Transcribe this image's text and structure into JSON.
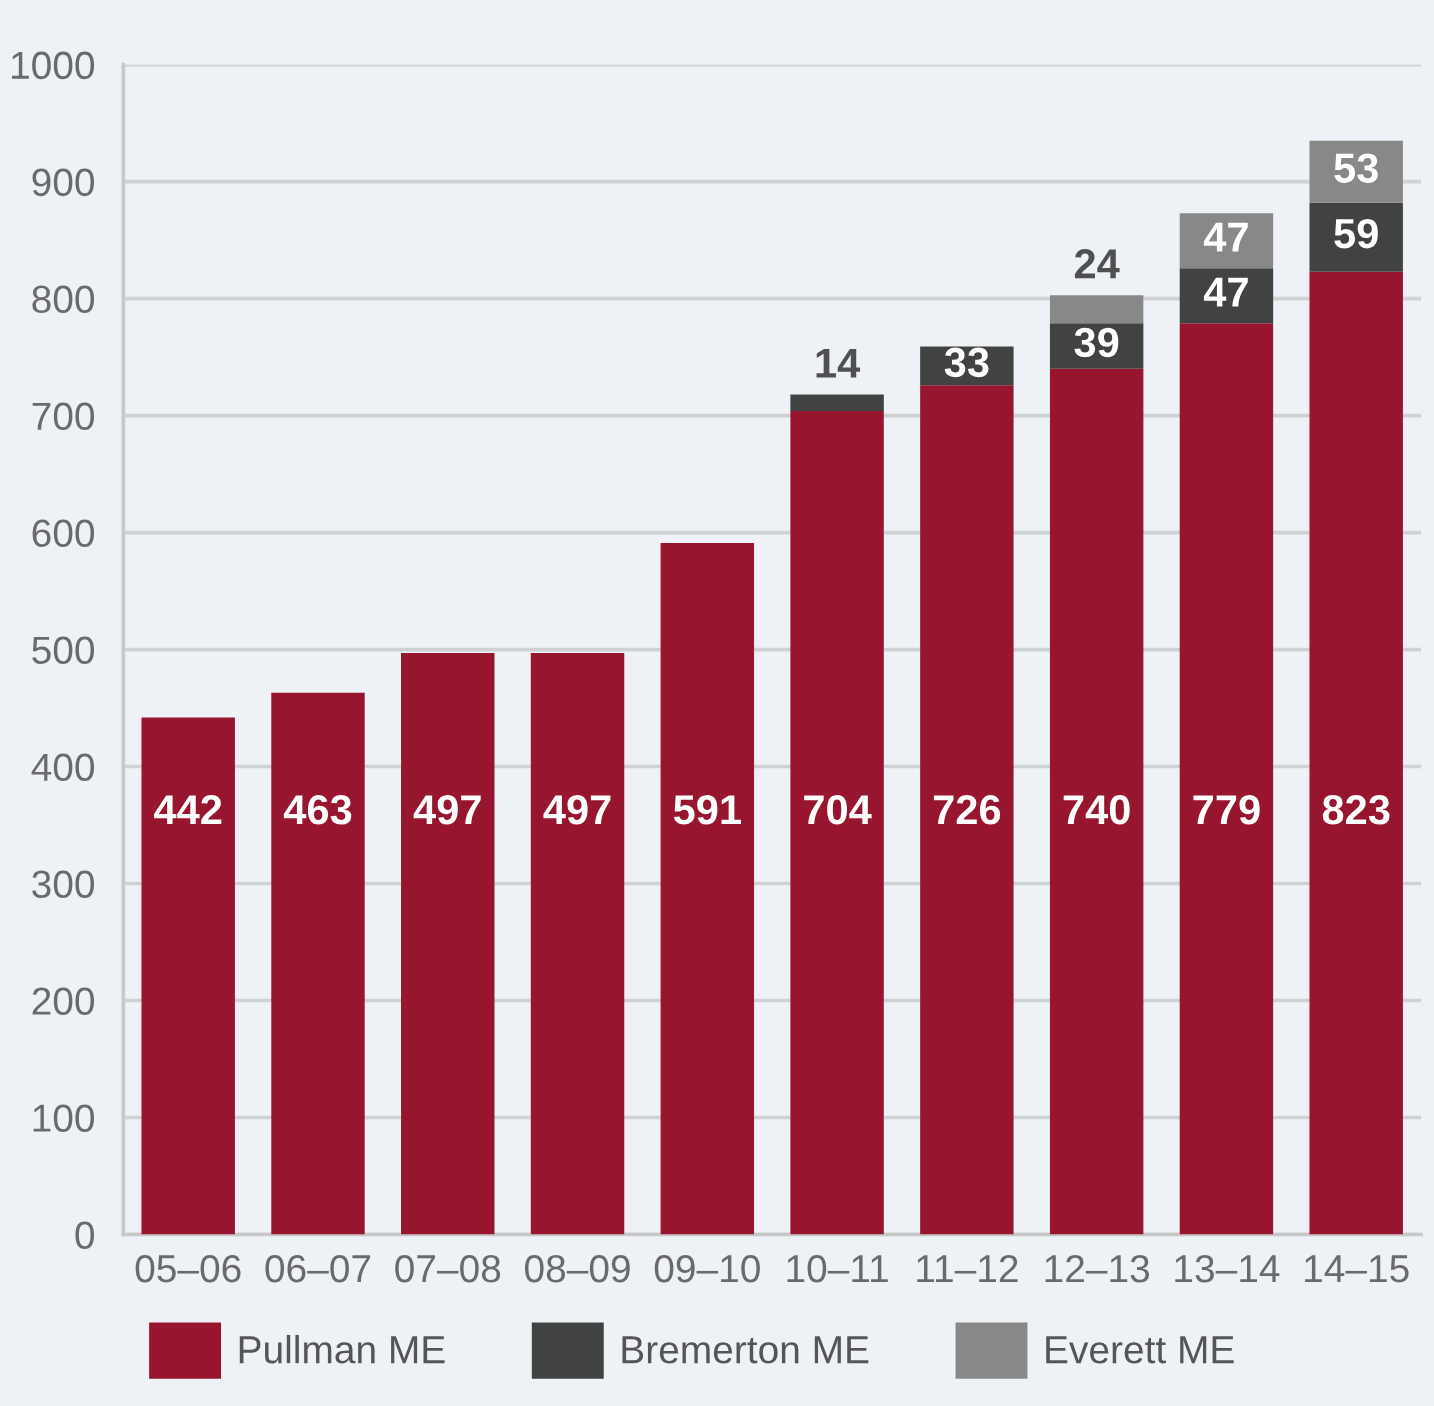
{
  "chart_data": {
    "type": "bar",
    "stacked": true,
    "categories": [
      "05–06",
      "06–07",
      "07–08",
      "08–09",
      "09–10",
      "10–11",
      "11–12",
      "12–13",
      "13–14",
      "14–15"
    ],
    "series": [
      {
        "name": "Pullman ME",
        "color": "#981530",
        "values": [
          442,
          463,
          497,
          497,
          591,
          704,
          726,
          740,
          779,
          823
        ]
      },
      {
        "name": "Bremerton ME",
        "color": "#414242",
        "values": [
          null,
          null,
          null,
          null,
          null,
          14,
          33,
          39,
          47,
          59
        ]
      },
      {
        "name": "Everett ME",
        "color": "#888888",
        "values": [
          null,
          null,
          null,
          null,
          null,
          null,
          null,
          24,
          47,
          53
        ]
      }
    ],
    "ylim": [
      0,
      1000
    ],
    "yticks": [
      0,
      100,
      200,
      300,
      400,
      500,
      600,
      700,
      800,
      900,
      1000
    ],
    "grid": "y",
    "legend": "bottom",
    "data_labels": true
  }
}
